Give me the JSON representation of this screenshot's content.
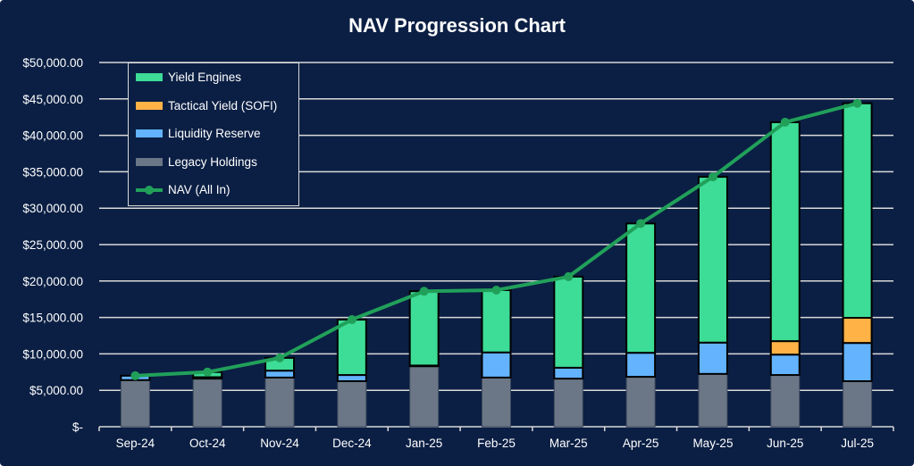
{
  "chart_data": {
    "type": "bar",
    "stacked": true,
    "title": "NAV Progression Chart",
    "xlabel": "",
    "ylabel": "",
    "ylim": [
      0,
      50000
    ],
    "yticks": [
      0,
      5000,
      10000,
      15000,
      20000,
      25000,
      30000,
      35000,
      40000,
      45000,
      50000
    ],
    "ytick_labels": [
      "$-",
      "$5,000.00",
      "$10,000.00",
      "$15,000.00",
      "$20,000.00",
      "$25,000.00",
      "$30,000.00",
      "$35,000.00",
      "$40,000.00",
      "$45,000.00",
      "$50,000.00"
    ],
    "categories": [
      "Sep-24",
      "Oct-24",
      "Nov-24",
      "Dec-24",
      "Jan-25",
      "Feb-25",
      "Mar-25",
      "Apr-25",
      "May-25",
      "Jun-25",
      "Jul-25"
    ],
    "series": [
      {
        "name": "Legacy Holdings",
        "color": "#6b7787",
        "values": [
          6400,
          6600,
          6750,
          6250,
          8300,
          6750,
          6600,
          6850,
          7250,
          7100,
          6250
        ]
      },
      {
        "name": "Liquidity Reserve",
        "color": "#63b3ff",
        "values": [
          600,
          200,
          950,
          850,
          100,
          3450,
          1500,
          3300,
          4300,
          2800,
          5250
        ]
      },
      {
        "name": "Tactical Yield (SOFI)",
        "color": "#ffb347",
        "values": [
          0,
          0,
          0,
          0,
          0,
          0,
          0,
          0,
          0,
          1850,
          3450
        ]
      },
      {
        "name": "Yield Engines",
        "color": "#3ddc97",
        "values": [
          0,
          700,
          1750,
          7600,
          10200,
          8550,
          12500,
          17750,
          22750,
          30050,
          29450
        ]
      }
    ],
    "line": {
      "name": "NAV (All In)",
      "color": "#21a05a",
      "values": [
        7000,
        7500,
        9450,
        14700,
        18600,
        18750,
        20600,
        27900,
        34300,
        41800,
        44400
      ]
    },
    "legend_order": [
      "Yield Engines",
      "Tactical Yield (SOFI)",
      "Liquidity Reserve",
      "Legacy Holdings",
      "NAV (All In)"
    ],
    "legend_position": "top-left",
    "grid": true
  }
}
